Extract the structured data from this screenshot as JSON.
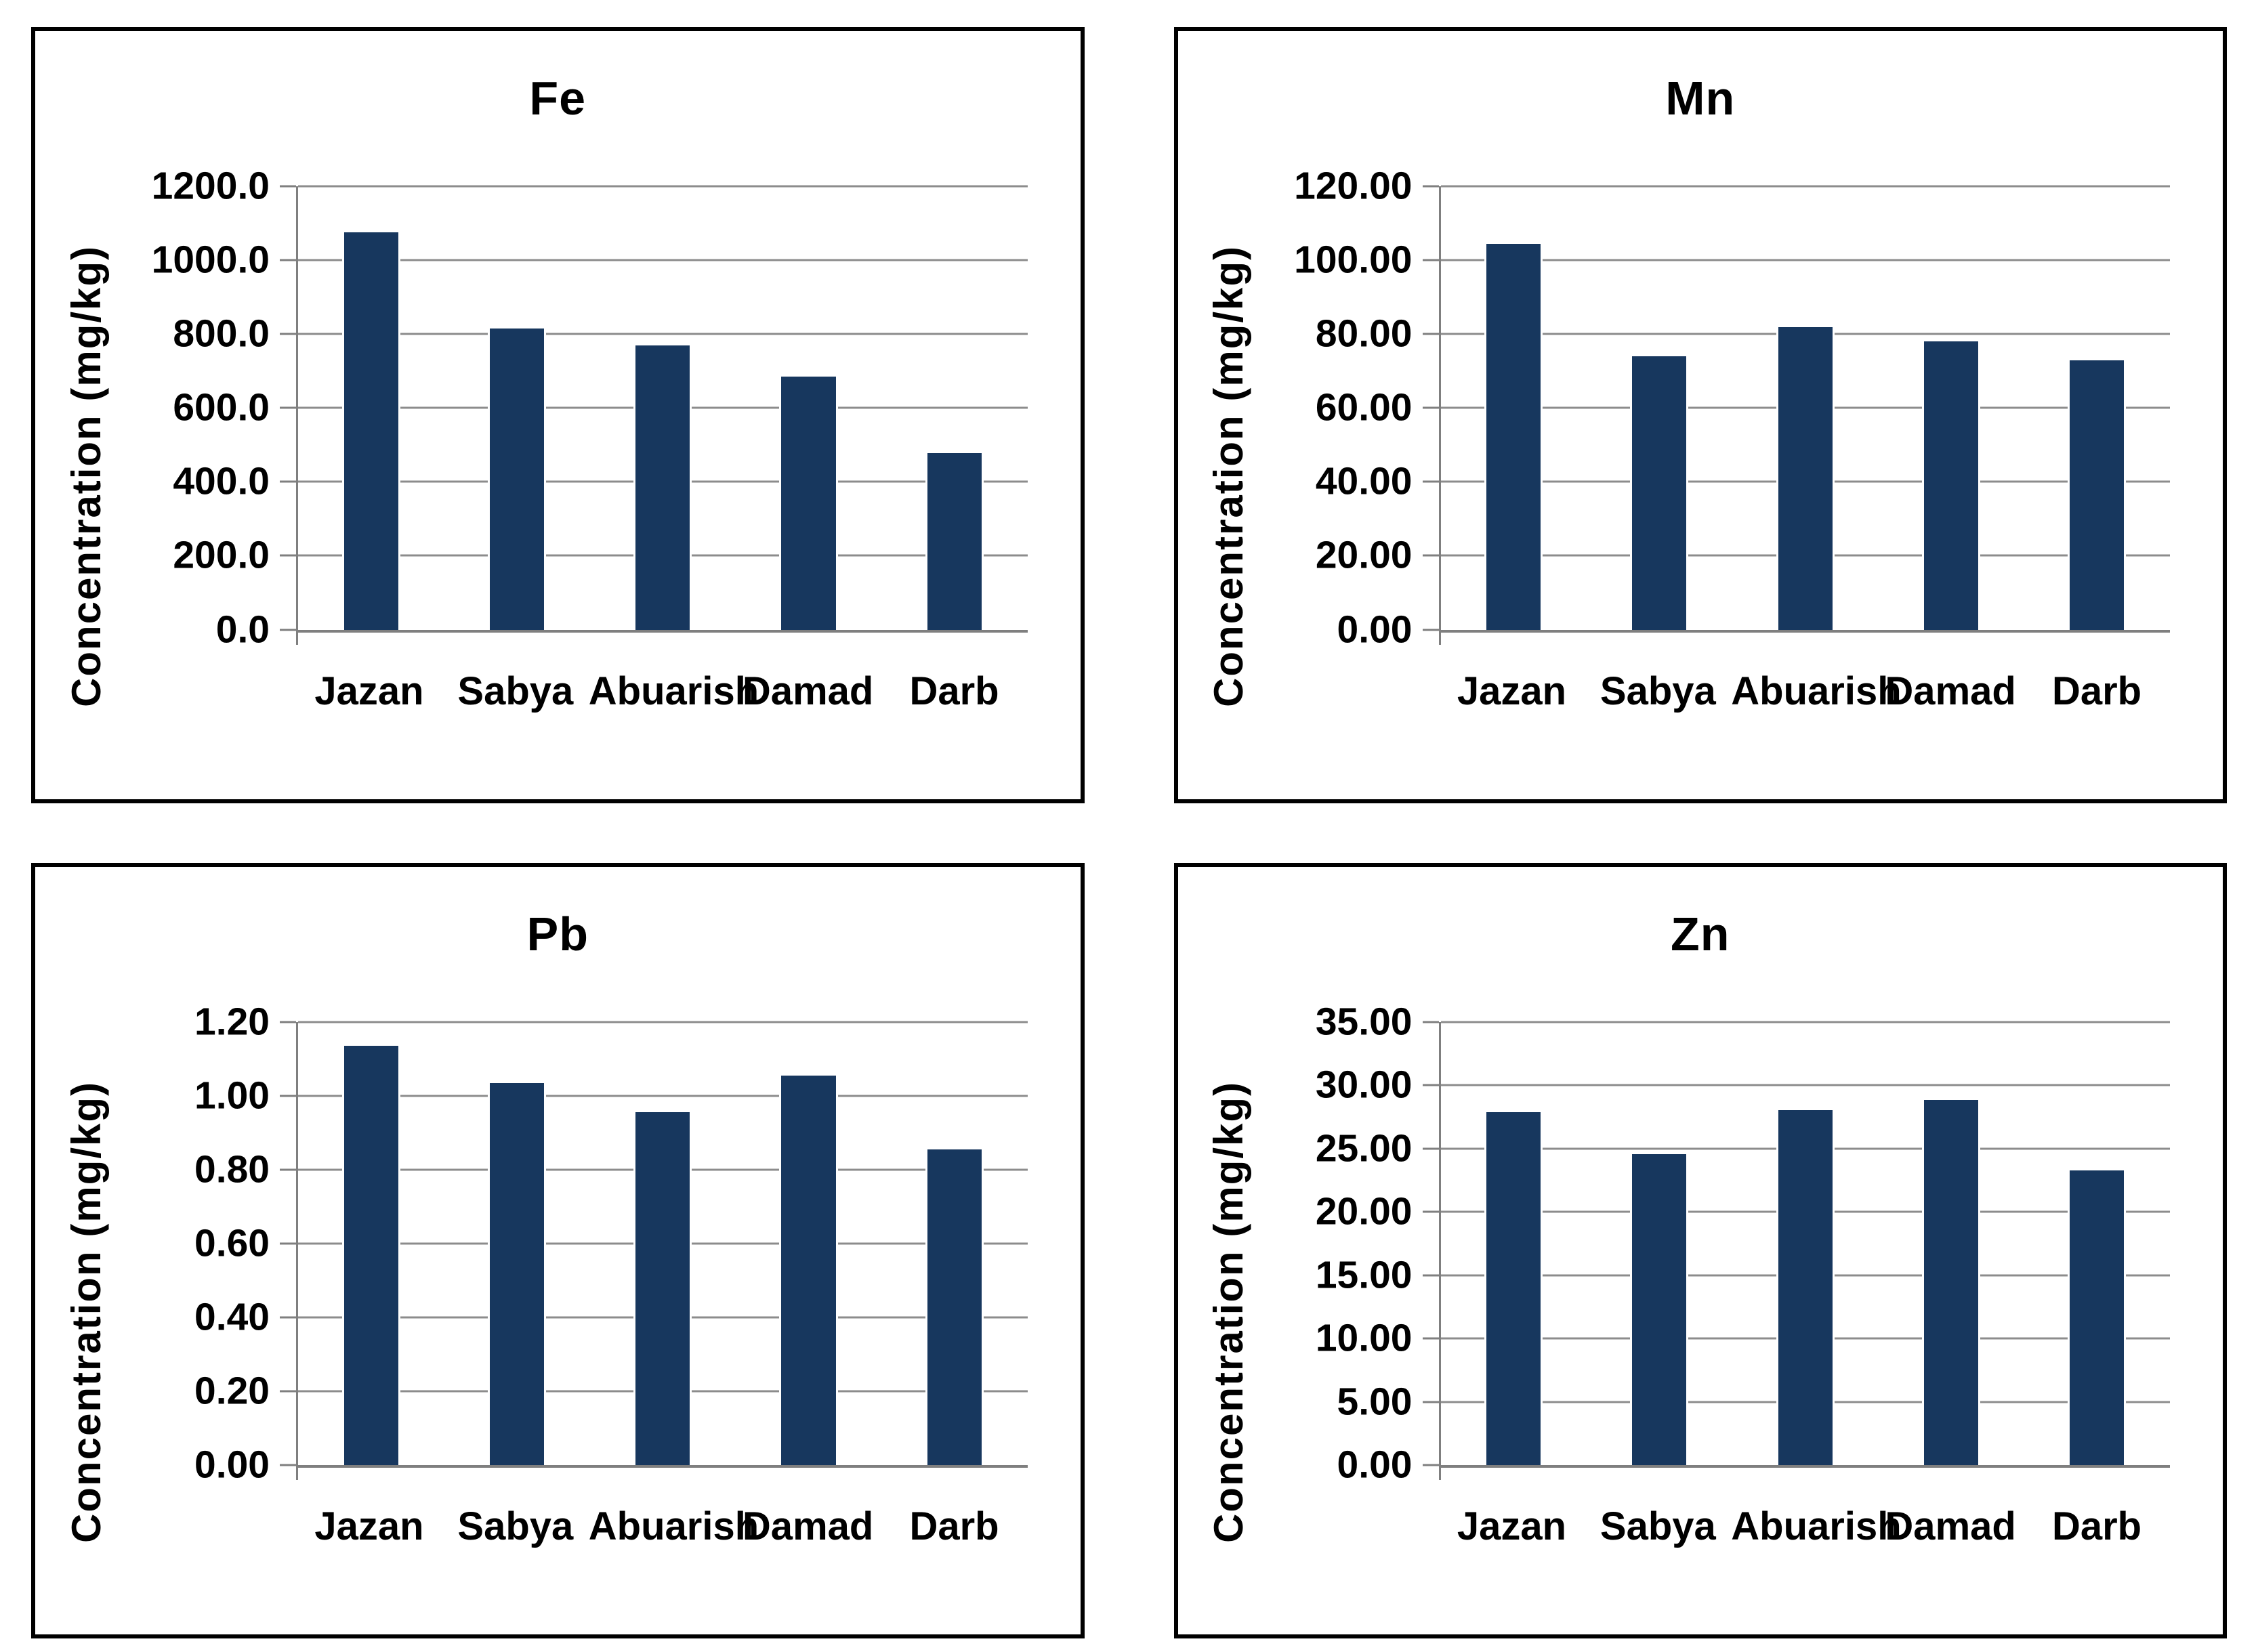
{
  "figure": {
    "description": "Four bar charts of heavy metal concentrations at five sites",
    "background": "#FFFFFF"
  },
  "colors": {
    "bar": "#17375E",
    "grid": "#8C8C8C",
    "axis": "#7F7F7F",
    "panel_border": "#000000",
    "bar_edge": "#FFFFFF"
  },
  "chart_data": [
    {
      "type": "bar",
      "title": "Fe",
      "ylabel": "Concentration (mg/kg)",
      "xlabel": "",
      "categories": [
        "Jazan",
        "Sabya",
        "Abuarish",
        "Damad",
        "Darb"
      ],
      "values": [
        1080,
        820,
        775,
        690,
        483
      ],
      "ylim": [
        0,
        1200
      ],
      "ytick_step": 200,
      "ytick_labels": [
        "1200.0",
        "1000.0",
        "800.0",
        "600.0",
        "400.0",
        "200.0",
        "0.0"
      ],
      "grid": true,
      "legend": false
    },
    {
      "type": "bar",
      "title": "Mn",
      "ylabel": "Concentration (mg/kg)",
      "xlabel": "",
      "categories": [
        "Jazan",
        "Sabya",
        "Abuarish",
        "Damad",
        "Darb"
      ],
      "values": [
        105,
        74.5,
        82.5,
        78.5,
        73.5
      ],
      "ylim": [
        0,
        120
      ],
      "ytick_step": 20,
      "ytick_labels": [
        "120.00",
        "100.00",
        "80.00",
        "60.00",
        "40.00",
        "20.00",
        "0.00"
      ],
      "grid": true,
      "legend": false
    },
    {
      "type": "bar",
      "title": "Pb",
      "ylabel": "Concentration (mg/kg)",
      "xlabel": "",
      "categories": [
        "Jazan",
        "Sabya",
        "Abuarish",
        "Damad",
        "Darb"
      ],
      "values": [
        1.14,
        1.04,
        0.96,
        1.06,
        0.86
      ],
      "ylim": [
        0,
        1.2
      ],
      "ytick_step": 0.2,
      "ytick_labels": [
        "1.20",
        "1.00",
        "0.80",
        "0.60",
        "0.40",
        "0.20",
        "0.00"
      ],
      "grid": true,
      "legend": false
    },
    {
      "type": "bar",
      "title": "Zn",
      "ylabel": "Concentration (mg/kg)",
      "xlabel": "",
      "categories": [
        "Jazan",
        "Sabya",
        "Abuarish",
        "Damad",
        "Darb"
      ],
      "values": [
        28.0,
        24.7,
        28.2,
        29.0,
        23.4
      ],
      "ylim": [
        0,
        35
      ],
      "ytick_step": 5,
      "ytick_labels": [
        "35.00",
        "30.00",
        "25.00",
        "20.00",
        "15.00",
        "10.00",
        "5.00",
        "0.00"
      ],
      "grid": true,
      "legend": false
    }
  ]
}
